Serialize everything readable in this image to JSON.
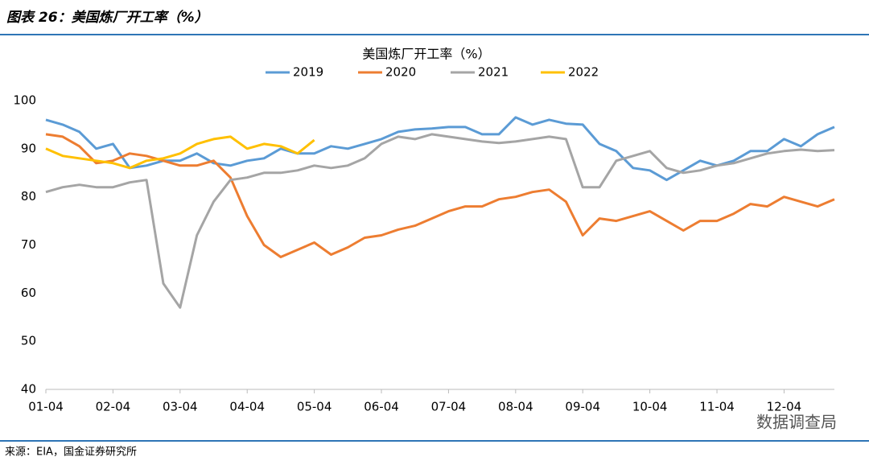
{
  "header": {
    "title": "图表 26：美国炼厂开工率（%）"
  },
  "chart_data": {
    "type": "line",
    "title": "美国炼厂开工率（%）",
    "categories": [
      "01-04",
      null,
      null,
      null,
      "02-04",
      null,
      null,
      null,
      "03-04",
      null,
      null,
      null,
      "04-04",
      null,
      null,
      null,
      "05-04",
      null,
      null,
      null,
      "06-04",
      null,
      null,
      null,
      "07-04",
      null,
      null,
      null,
      "08-04",
      null,
      null,
      null,
      "09-04",
      null,
      null,
      null,
      "10-04",
      null,
      null,
      null,
      "11-04",
      null,
      null,
      null,
      "12-04",
      null,
      null,
      null
    ],
    "series": [
      {
        "name": "2019",
        "color": "#5b9bd5",
        "values": [
          96,
          95,
          93.5,
          90,
          91,
          86,
          86.5,
          87.5,
          87.5,
          89,
          87,
          86.5,
          87.5,
          88,
          90,
          89,
          89,
          90.5,
          90,
          91,
          92,
          93.5,
          94,
          94.2,
          94.5,
          94.5,
          93,
          93,
          96.5,
          95,
          96,
          95.2,
          95,
          91,
          89.5,
          86,
          85.5,
          83.5,
          85.5,
          87.5,
          86.5,
          87.5,
          89.5,
          89.5,
          92,
          90.5,
          93,
          94.5
        ]
      },
      {
        "name": "2020",
        "color": "#ed7d31",
        "values": [
          93,
          92.5,
          90.5,
          87,
          87.5,
          89,
          88.5,
          87.5,
          86.5,
          86.5,
          87.5,
          84,
          76,
          70,
          67.5,
          69,
          70.5,
          68,
          69.5,
          71.5,
          72,
          73.2,
          74,
          75.5,
          77,
          78,
          78,
          79.5,
          80,
          81,
          81.5,
          79,
          72,
          75.5,
          75,
          76,
          77,
          75,
          73,
          75,
          75,
          76.5,
          78.5,
          78,
          80,
          79,
          78,
          79.5
        ]
      },
      {
        "name": "2021",
        "color": "#a5a5a5",
        "values": [
          81,
          82,
          82.5,
          82,
          82,
          83,
          83.5,
          62,
          57,
          72,
          79,
          83.5,
          84,
          85,
          85,
          85.5,
          86.5,
          86,
          86.5,
          88,
          91,
          92.5,
          92,
          93,
          92.5,
          92,
          91.5,
          91.2,
          91.5,
          92,
          92.5,
          92,
          82,
          82,
          87.5,
          88.5,
          89.5,
          86,
          85,
          85.5,
          86.5,
          87,
          88,
          89,
          89.5,
          89.8,
          89.5,
          89.7
        ]
      },
      {
        "name": "2022",
        "color": "#ffc000",
        "values": [
          90,
          88.5,
          88,
          87.5,
          87,
          86,
          87.5,
          88,
          89,
          91,
          92,
          92.5,
          90,
          91,
          90.5,
          89,
          91.8,
          null,
          null,
          null,
          null,
          null,
          null,
          null,
          null,
          null,
          null,
          null,
          null,
          null,
          null,
          null,
          null,
          null,
          null,
          null,
          null,
          null,
          null,
          null,
          null,
          null,
          null,
          null,
          null,
          null,
          null,
          null
        ]
      }
    ],
    "ylim": [
      40,
      100
    ],
    "yticks": [
      40,
      50,
      60,
      70,
      80,
      90,
      100
    ],
    "grid": false,
    "legend": "top"
  },
  "footer": {
    "source": "来源：EIA，国金证券研究所",
    "watermark": "数据调查局"
  }
}
